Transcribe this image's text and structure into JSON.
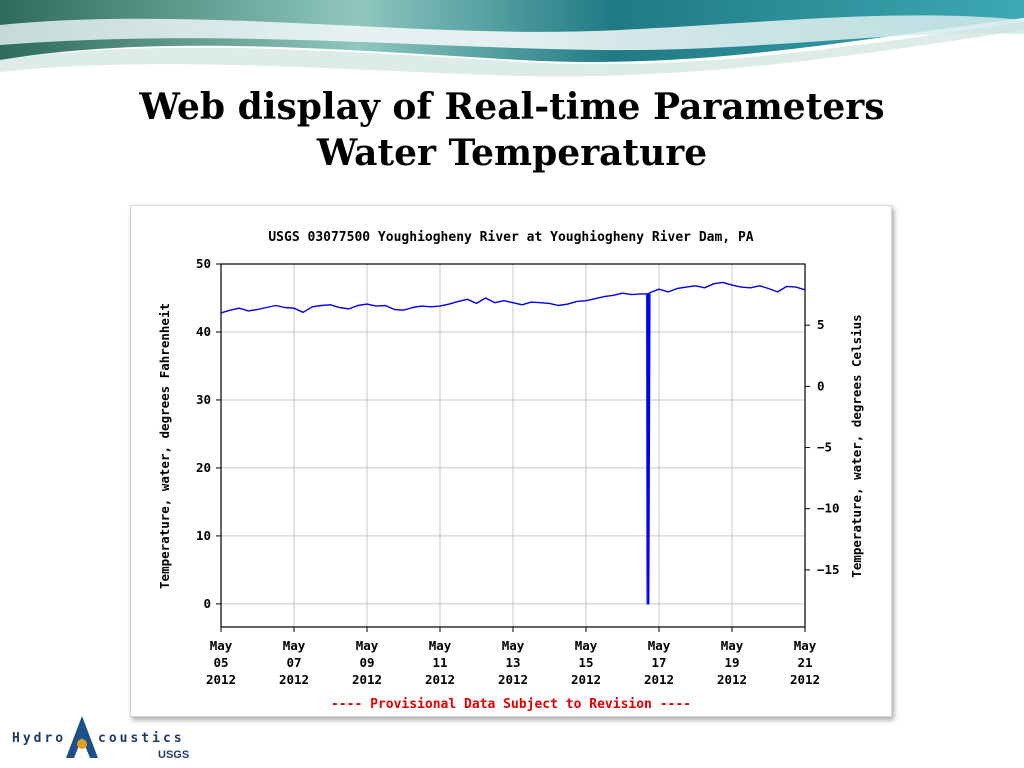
{
  "slide": {
    "title_line1": "Web display of Real-time Parameters",
    "title_line2": "Water Temperature"
  },
  "logo": {
    "text_left": "Hydro",
    "text_right": "coustics",
    "subtext": "USGS"
  },
  "colors": {
    "series": "#0000ee",
    "grid": "#c8c8c8",
    "provisional": "#e00000",
    "text": "#000000"
  },
  "chart_data": {
    "type": "line",
    "title": "USGS 03077500 Youghiogheny River at Youghiogheny River Dam, PA",
    "ylabel": "Temperature, water, degrees Fahrenheit",
    "ylabel_right": "Temperature, water, degrees Celsius",
    "ylim": [
      -3.4,
      50
    ],
    "xlim": [
      "2012-05-05",
      "2012-05-21"
    ],
    "yticks": [
      0,
      10,
      20,
      30,
      40,
      50
    ],
    "yticks_right": [
      5,
      0,
      -5,
      -10,
      -15
    ],
    "xtick_labels": [
      {
        "date": "2012-05-05",
        "month": "May",
        "day": "05",
        "year": "2012"
      },
      {
        "date": "2012-05-07",
        "month": "May",
        "day": "07",
        "year": "2012"
      },
      {
        "date": "2012-05-09",
        "month": "May",
        "day": "09",
        "year": "2012"
      },
      {
        "date": "2012-05-11",
        "month": "May",
        "day": "11",
        "year": "2012"
      },
      {
        "date": "2012-05-13",
        "month": "May",
        "day": "13",
        "year": "2012"
      },
      {
        "date": "2012-05-15",
        "month": "May",
        "day": "15",
        "year": "2012"
      },
      {
        "date": "2012-05-17",
        "month": "May",
        "day": "17",
        "year": "2012"
      },
      {
        "date": "2012-05-19",
        "month": "May",
        "day": "19",
        "year": "2012"
      },
      {
        "date": "2012-05-21",
        "month": "May",
        "day": "21",
        "year": "2012"
      }
    ],
    "grid": true,
    "note": "---- Provisional Data Subject to Revision ----",
    "series": [
      {
        "x": [
          "2012-05-05 00:00",
          "2012-05-05 06:00",
          "2012-05-05 12:00",
          "2012-05-05 18:00",
          "2012-05-06 00:00",
          "2012-05-06 06:00",
          "2012-05-06 12:00",
          "2012-05-06 18:00",
          "2012-05-07 00:00",
          "2012-05-07 06:00",
          "2012-05-07 12:00",
          "2012-05-07 18:00",
          "2012-05-08 00:00",
          "2012-05-08 06:00",
          "2012-05-08 12:00",
          "2012-05-08 18:00",
          "2012-05-09 00:00",
          "2012-05-09 06:00",
          "2012-05-09 12:00",
          "2012-05-09 18:00",
          "2012-05-10 00:00",
          "2012-05-10 06:00",
          "2012-05-10 12:00",
          "2012-05-10 18:00",
          "2012-05-11 00:00",
          "2012-05-11 06:00",
          "2012-05-11 12:00",
          "2012-05-11 18:00",
          "2012-05-12 00:00",
          "2012-05-12 06:00",
          "2012-05-12 12:00",
          "2012-05-12 18:00",
          "2012-05-13 00:00",
          "2012-05-13 06:00",
          "2012-05-13 12:00",
          "2012-05-13 18:00",
          "2012-05-14 00:00",
          "2012-05-14 06:00",
          "2012-05-14 12:00",
          "2012-05-14 18:00",
          "2012-05-15 00:00",
          "2012-05-15 06:00",
          "2012-05-15 12:00",
          "2012-05-15 18:00",
          "2012-05-16 00:00",
          "2012-05-16 06:00",
          "2012-05-16 12:00",
          "2012-05-16 16:00",
          "2012-05-16 16:15",
          "2012-05-16 16:30",
          "2012-05-16 17:00",
          "2012-05-16 17:15",
          "2012-05-16 18:00",
          "2012-05-17 00:00",
          "2012-05-17 06:00",
          "2012-05-17 12:00",
          "2012-05-17 18:00",
          "2012-05-18 00:00",
          "2012-05-18 06:00",
          "2012-05-18 12:00",
          "2012-05-18 18:00",
          "2012-05-19 00:00",
          "2012-05-19 06:00",
          "2012-05-19 12:00",
          "2012-05-19 18:00",
          "2012-05-20 00:00",
          "2012-05-20 06:00",
          "2012-05-20 12:00",
          "2012-05-20 18:00",
          "2012-05-21 00:00"
        ],
        "y": [
          42.8,
          43.2,
          43.5,
          43.1,
          43.3,
          43.6,
          43.9,
          43.6,
          43.5,
          42.9,
          43.7,
          43.9,
          44.0,
          43.6,
          43.4,
          43.9,
          44.1,
          43.8,
          43.9,
          43.3,
          43.2,
          43.6,
          43.8,
          43.7,
          43.8,
          44.1,
          44.5,
          44.8,
          44.2,
          45.0,
          44.3,
          44.6,
          44.3,
          44.0,
          44.4,
          44.3,
          44.2,
          43.9,
          44.1,
          44.5,
          44.6,
          44.9,
          45.2,
          45.4,
          45.7,
          45.5,
          45.6,
          45.6,
          0.0,
          45.6,
          45.7,
          0.0,
          45.8,
          46.3,
          45.9,
          46.4,
          46.6,
          46.8,
          46.5,
          47.1,
          47.3,
          46.9,
          46.6,
          46.5,
          46.8,
          46.4,
          45.9,
          46.7,
          46.6,
          46.2
        ]
      }
    ]
  }
}
